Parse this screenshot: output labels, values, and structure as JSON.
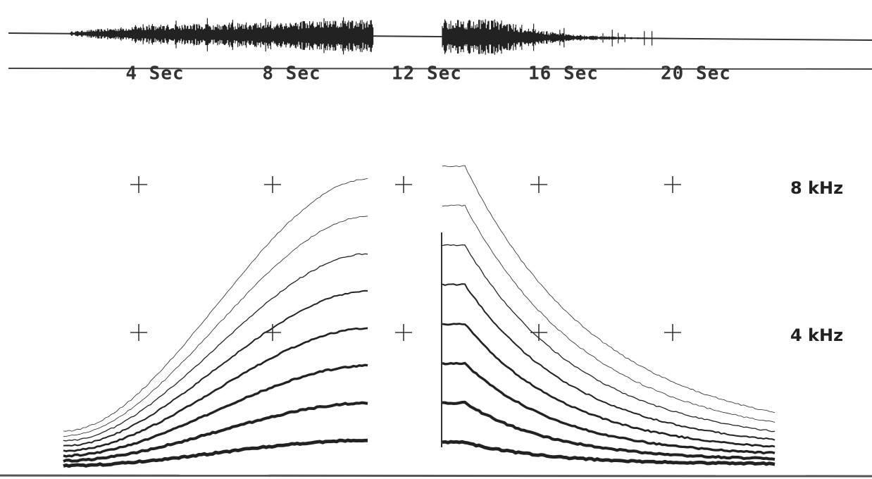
{
  "time_labels": [
    "4 Sec",
    "8 Sec",
    "12 Sec",
    "16 Sec",
    "20 Sec"
  ],
  "frequency_labels": [
    "8 kHz",
    "4 kHz"
  ]
}
